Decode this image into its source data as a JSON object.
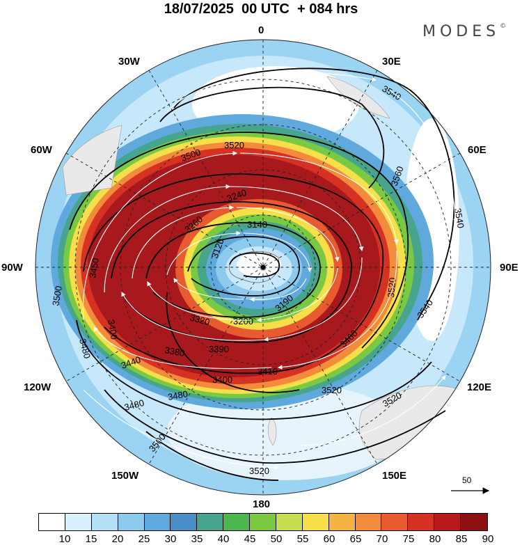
{
  "header": {
    "title": "18/07/2025  00 UTC  + 084 hrs",
    "brand": "MODES",
    "brand_mark": "©"
  },
  "longitude_labels": {
    "top": "0",
    "lon_30w": "30W",
    "lon_30e": "30E",
    "lon_60w": "60W",
    "lon_60e": "60E",
    "lon_90w": "90W",
    "lon_90e": "90E",
    "lon_120w": "120W",
    "lon_120e": "120E",
    "lon_150w": "150W",
    "lon_150e": "150E",
    "bottom": "180"
  },
  "contour_labels": [
    "3540",
    "3520",
    "3560",
    "3500",
    "3540",
    "3540",
    "3140",
    "3120",
    "3240",
    "3520",
    "3500",
    "3450",
    "3480",
    "3440",
    "3400",
    "3480",
    "3400",
    "3480",
    "3520",
    "3500",
    "3520",
    "3520",
    "3190",
    "3200",
    "3320",
    "3380",
    "3390",
    "3410",
    "3460",
    "3260"
  ],
  "reference_vector": {
    "label": "50"
  },
  "colorbar": {
    "labels": [
      "10",
      "15",
      "20",
      "25",
      "30",
      "35",
      "40",
      "45",
      "50",
      "55",
      "60",
      "65",
      "70",
      "75",
      "80",
      "85",
      "90"
    ],
    "colors": [
      "#ffffff",
      "#d8f0fc",
      "#b3e0f6",
      "#8ccbee",
      "#5fa9dd",
      "#4a8ec8",
      "#47a48d",
      "#4cb64f",
      "#7ac943",
      "#c5de52",
      "#f6df4a",
      "#f5b343",
      "#f28b3c",
      "#e85a30",
      "#d63223",
      "#b81a1c",
      "#8c1012"
    ]
  },
  "colors": {
    "land": "#e9e9e9",
    "jet_core": "#a7191c"
  }
}
